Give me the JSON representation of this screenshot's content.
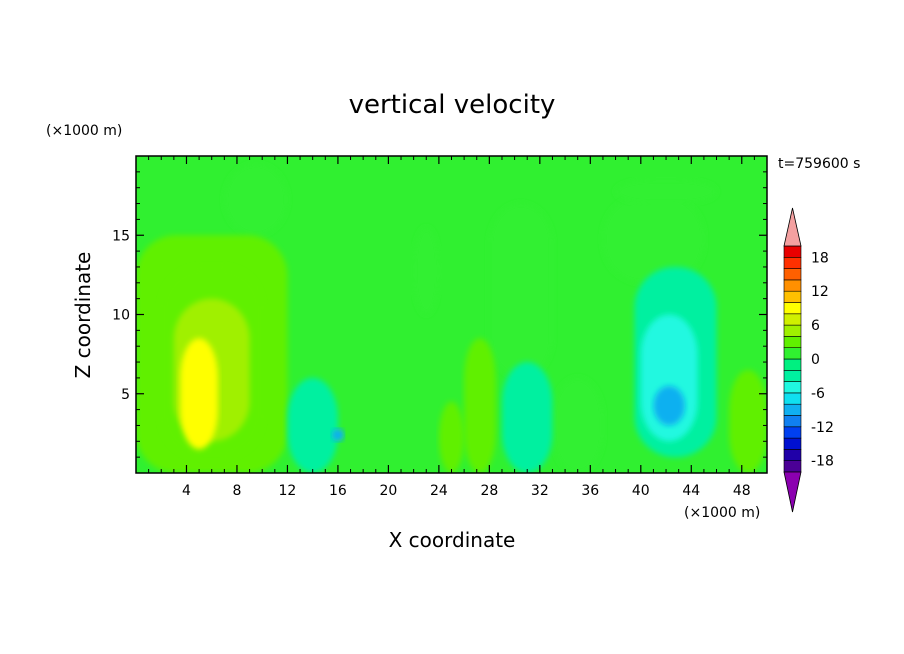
{
  "chart_data": {
    "type": "heatmap",
    "title": "vertical velocity",
    "xlabel": "X coordinate",
    "ylabel": "Z coordinate",
    "x_unit": "(×1000 m)",
    "y_unit": "(×1000 m)",
    "time_label": "t=759600 s",
    "xlim": [
      0,
      50
    ],
    "ylim": [
      0,
      20
    ],
    "x_ticks": [
      4,
      8,
      12,
      16,
      20,
      24,
      28,
      32,
      36,
      40,
      44,
      48
    ],
    "y_ticks": [
      5,
      10,
      15
    ],
    "colorbar": {
      "levels": [
        -20,
        -18,
        -16,
        -14,
        -12,
        -10,
        -8,
        -6,
        -4,
        -2,
        0,
        2,
        4,
        6,
        8,
        10,
        12,
        14,
        16,
        18,
        20
      ],
      "tick_values": [
        18,
        12,
        6,
        0,
        -6,
        -12,
        -18
      ],
      "colors": [
        "#8b00b0",
        "#4b0096",
        "#2000a8",
        "#0010d0",
        "#0040f0",
        "#1080f0",
        "#10b0f0",
        "#10e0f0",
        "#20f8e0",
        "#00f0a0",
        "#00f080",
        "#30f030",
        "#60f000",
        "#a0f000",
        "#d0f000",
        "#ffff00",
        "#ffc000",
        "#ff9000",
        "#ff6000",
        "#ff3000",
        "#e80000",
        "#f4a0a0"
      ],
      "extend": "both"
    },
    "cells": [
      {
        "x": [
          0,
          50
        ],
        "z": [
          0,
          20
        ],
        "w": 0
      },
      {
        "x": [
          7,
          12
        ],
        "z": [
          15,
          19.5
        ],
        "w": 1
      },
      {
        "x": [
          0,
          12
        ],
        "z": [
          0,
          15
        ],
        "w": 2
      },
      {
        "x": [
          2,
          10
        ],
        "z": [
          1,
          13
        ],
        "w": 3
      },
      {
        "x": [
          3,
          9
        ],
        "z": [
          2,
          11
        ],
        "w": 5
      },
      {
        "x": [
          3.5,
          6.5
        ],
        "z": [
          1.5,
          8.5
        ],
        "w": 8
      },
      {
        "x": [
          22,
          24
        ],
        "z": [
          10,
          15.5
        ],
        "w": 1
      },
      {
        "x": [
          28,
          33
        ],
        "z": [
          6,
          17
        ],
        "w": 1
      },
      {
        "x": [
          33,
          37
        ],
        "z": [
          0,
          6
        ],
        "w": 1
      },
      {
        "x": [
          37,
          45
        ],
        "z": [
          12,
          17.5
        ],
        "w": 1
      },
      {
        "x": [
          38,
          46
        ],
        "z": [
          17,
          18.5
        ],
        "w": 1
      },
      {
        "x": [
          39.5,
          46
        ],
        "z": [
          1,
          13
        ],
        "w": -3
      },
      {
        "x": [
          40,
          44.5
        ],
        "z": [
          2,
          10
        ],
        "w": -5
      },
      {
        "x": [
          41,
          43.5
        ],
        "z": [
          3,
          5.5
        ],
        "w": -9
      },
      {
        "x": [
          12,
          16
        ],
        "z": [
          0,
          6
        ],
        "w": -3
      },
      {
        "x": [
          15.5,
          16.5
        ],
        "z": [
          2,
          2.8
        ],
        "w": -9
      },
      {
        "x": [
          29,
          33
        ],
        "z": [
          0,
          7
        ],
        "w": -3
      },
      {
        "x": [
          26,
          28.5
        ],
        "z": [
          0,
          8.5
        ],
        "w": 3
      },
      {
        "x": [
          47,
          50
        ],
        "z": [
          0,
          6.5
        ],
        "w": 3
      },
      {
        "x": [
          24,
          26
        ],
        "z": [
          0,
          4.5
        ],
        "w": 3
      }
    ]
  }
}
